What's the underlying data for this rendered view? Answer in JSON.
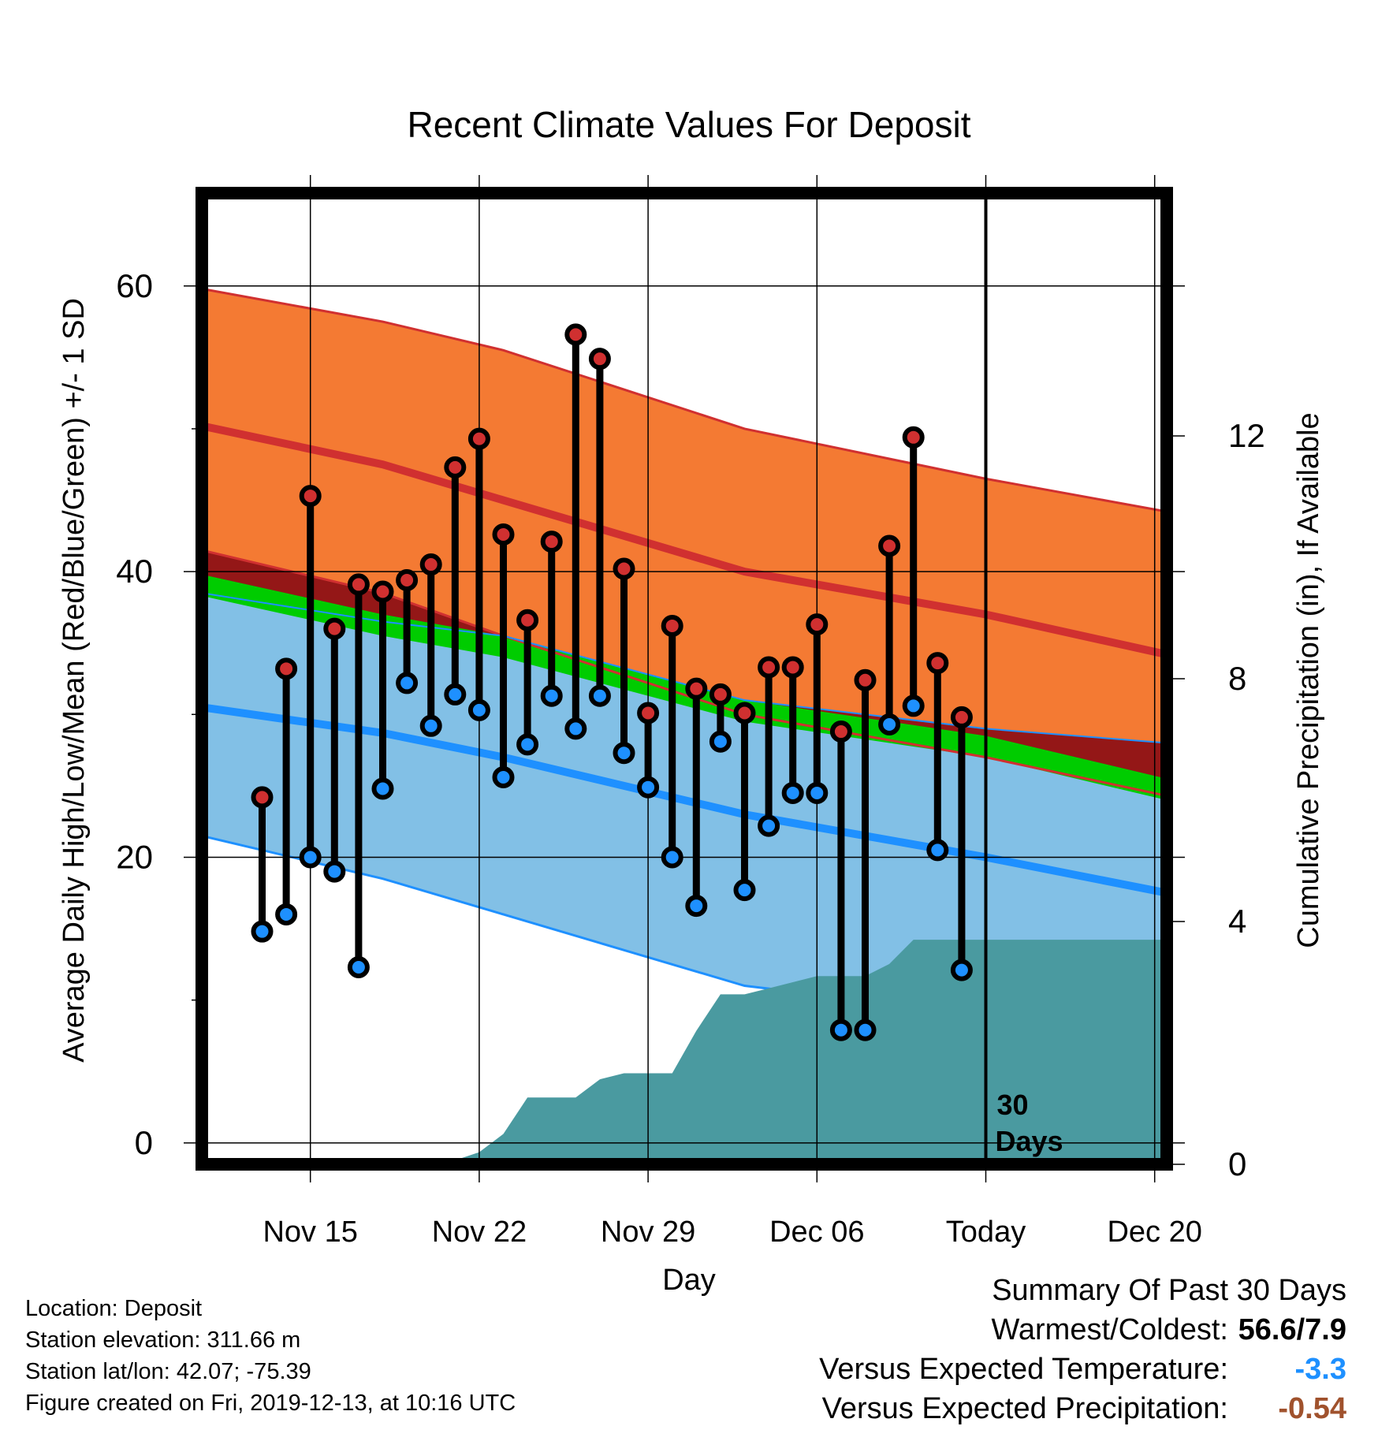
{
  "chart_data": {
    "type": "line",
    "title": "Recent Climate Values For Deposit",
    "xlabel": "Day",
    "ylabel": "Average Daily High/Low/Mean (Red/Blue/Green) +/- 1 SD",
    "y2label": "Cumulative Precipitation (in), If Available",
    "xlim": [
      -2.5,
      37.5
    ],
    "ylim": [
      -1.5,
      66.5
    ],
    "y2lim": [
      0,
      16
    ],
    "x_ticks": [
      {
        "x": 2,
        "label": "Nov 15"
      },
      {
        "x": 9,
        "label": "Nov 22"
      },
      {
        "x": 16,
        "label": "Nov 29"
      },
      {
        "x": 23,
        "label": "Dec 06"
      },
      {
        "x": 30,
        "label": "Today"
      },
      {
        "x": 37,
        "label": "Dec 20"
      }
    ],
    "y_ticks": [
      0,
      20,
      40,
      60
    ],
    "y_minor_ticks": [
      10,
      30,
      50
    ],
    "y2_ticks": [
      0,
      4,
      8,
      12
    ],
    "grid": true,
    "today_marker": {
      "x": 30,
      "label_line1": "30",
      "label_line2": "Days"
    },
    "normals": {
      "x": [
        -2.5,
        5,
        10,
        20,
        30,
        37.5
      ],
      "high_plus_sd": [
        59.8,
        57.5,
        55.5,
        50.0,
        46.5,
        44.2
      ],
      "high_mean": [
        50.2,
        47.5,
        45.0,
        40.0,
        37.0,
        34.2
      ],
      "high_minus_sd": [
        41.5,
        38.5,
        35.5,
        30.0,
        27.0,
        24.3
      ],
      "mean_upper": [
        39.8,
        37.0,
        35.5,
        31.0,
        28.5,
        25.5
      ],
      "mean_lower": [
        38.3,
        35.5,
        34.0,
        29.5,
        27.0,
        24.0
      ],
      "low_plus_sd": [
        38.5,
        36.5,
        35.5,
        31.0,
        29.0,
        28.0
      ],
      "low_mean": [
        30.5,
        28.7,
        27.0,
        23.0,
        20.0,
        17.5
      ],
      "low_minus_sd": [
        21.5,
        18.5,
        16.0,
        11.0,
        9.0,
        6.5
      ]
    },
    "series": [
      {
        "name": "High",
        "x": [
          0,
          1,
          2,
          3,
          4,
          5,
          6,
          7,
          8,
          9,
          10,
          11,
          12,
          13,
          14,
          15,
          16,
          17,
          18,
          19,
          20,
          21,
          22,
          23,
          24,
          25,
          26,
          27,
          28,
          29
        ],
        "values": [
          24.2,
          33.2,
          45.3,
          36.0,
          39.1,
          38.6,
          39.4,
          40.5,
          47.3,
          49.3,
          42.6,
          36.6,
          42.1,
          56.6,
          54.9,
          40.2,
          30.1,
          36.2,
          31.8,
          31.4,
          30.1,
          33.3,
          33.3,
          36.3,
          28.8,
          32.4,
          41.8,
          49.4,
          33.6,
          29.8
        ]
      },
      {
        "name": "Low",
        "x": [
          0,
          1,
          2,
          3,
          4,
          5,
          6,
          7,
          8,
          9,
          10,
          11,
          12,
          13,
          14,
          15,
          16,
          17,
          18,
          19,
          20,
          21,
          22,
          23,
          24,
          25,
          26,
          27,
          28,
          29
        ],
        "values": [
          14.8,
          16.0,
          20.0,
          19.0,
          12.3,
          24.8,
          32.2,
          29.2,
          31.4,
          30.3,
          25.6,
          27.9,
          31.3,
          29.0,
          31.3,
          27.3,
          24.9,
          20.0,
          16.6,
          28.1,
          17.7,
          22.2,
          24.5,
          24.5,
          7.9,
          7.9,
          29.3,
          30.6,
          20.5,
          12.1
        ]
      }
    ],
    "precipitation": {
      "x": [
        -2.5,
        7.5,
        9,
        10,
        11,
        12,
        13,
        14,
        15,
        16,
        17,
        18,
        19,
        20,
        21,
        22,
        23,
        24,
        25,
        26,
        27,
        28,
        29,
        30,
        37.5
      ],
      "values": [
        0,
        0,
        0.2,
        0.5,
        1.1,
        1.1,
        1.1,
        1.4,
        1.5,
        1.5,
        1.5,
        2.2,
        2.8,
        2.8,
        2.9,
        3.0,
        3.1,
        3.1,
        3.1,
        3.3,
        3.7,
        3.7,
        3.7,
        3.7,
        3.7
      ]
    },
    "colors": {
      "high_band": "#f47a33",
      "high_line": "#d03030",
      "low_band": "#82c0e6",
      "low_line": "#1e90ff",
      "mean_band": "#00cc00",
      "overlap_band": "#941717",
      "precip": "#4a9aa0",
      "high_marker": "#d03030",
      "low_marker": "#1e90ff",
      "temp_blue": "#1e90ff",
      "precip_brown": "#a0522d"
    }
  },
  "info": {
    "location": "Location: Deposit",
    "elevation": "Station elevation: 311.66 m",
    "latlon": "Station lat/lon: 42.07; -75.39",
    "created": "Figure created on Fri, 2019-12-13, at 10:16 UTC"
  },
  "summary": {
    "heading": "Summary Of Past 30 Days",
    "warmest_label": "Warmest/Coldest:",
    "warmest_value": "56.6/7.9",
    "temp_label": "Versus Expected Temperature:",
    "temp_value": "-3.3",
    "precip_label": "Versus Expected Precipitation:",
    "precip_value": "-0.54"
  }
}
